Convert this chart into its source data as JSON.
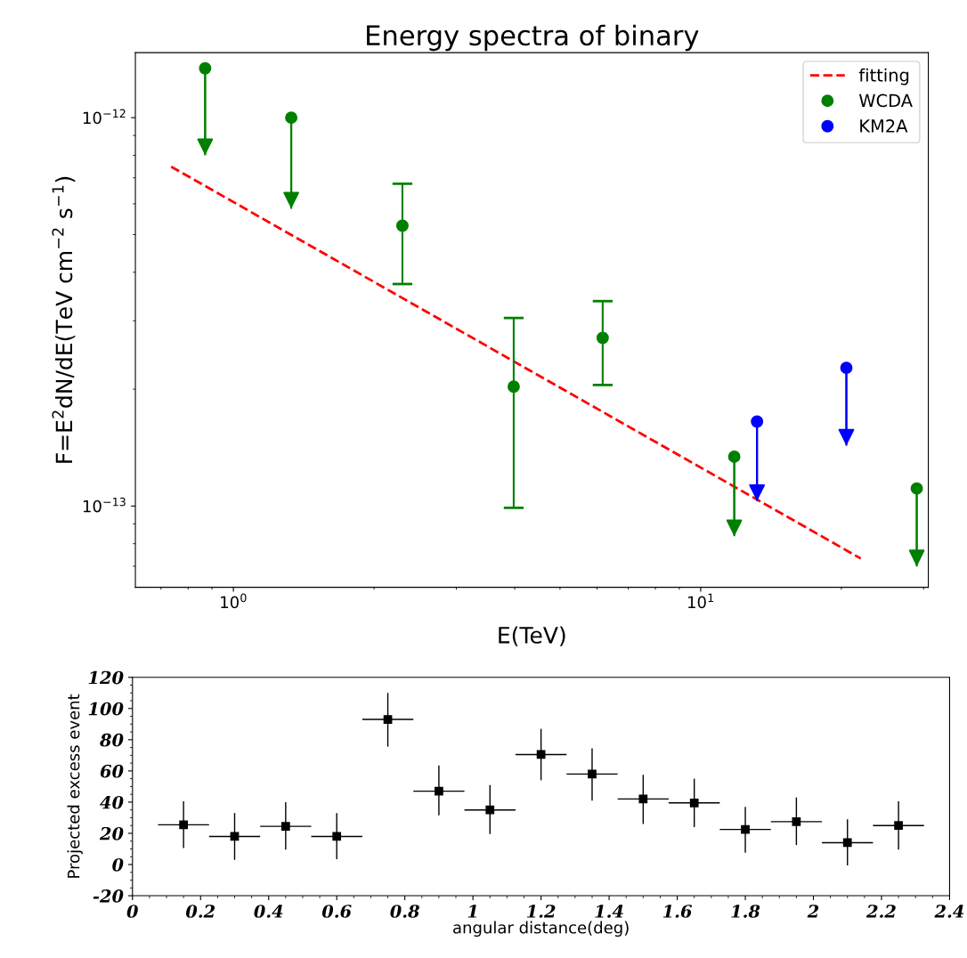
{
  "chart_data": [
    {
      "type": "scatter",
      "title": "Energy spectra of binary",
      "xlabel": "E(TeV)",
      "ylabel": "F=E$^{2}$dN/dE(TeV cm$^{−2}$ s$^{−1}$)",
      "log": "xy",
      "xlim": [
        0.617,
        30.7
      ],
      "ylim": [
        6.18e-14,
        1.47e-12
      ],
      "xticks": [
        {
          "value": 1,
          "label": "10$^{0}$"
        },
        {
          "value": 10,
          "label": "10$^{1}$"
        }
      ],
      "yticks": [
        {
          "value": 1e-13,
          "label": "10$^{−13}$"
        },
        {
          "value": 1e-12,
          "label": "10$^{−12}$"
        }
      ],
      "legend": "top right",
      "grid": false,
      "marker": "circle",
      "series": [
        {
          "name": "fitting",
          "type": "line",
          "marker": "none",
          "line_style": "dashed",
          "color": "#ff0000",
          "x": [
            0.736,
            22.0
          ],
          "values": [
            7.48e-13,
            7.33e-14
          ]
        },
        {
          "name": "WCDA",
          "color": "#008000",
          "x": [
            0.87,
            1.33,
            2.3,
            3.98,
            6.17,
            11.8,
            29.0
          ],
          "values": [
            1.34e-12,
            1e-12,
            5.27e-13,
            2.03e-13,
            2.71e-13,
            1.34e-13,
            1.11e-13
          ],
          "errors": [
            [
              8e-13,
              1.34e-12
            ],
            [
              5.83e-13,
              1e-12
            ],
            [
              3.73e-13,
              6.76e-13
            ],
            [
              9.9e-14,
              3.05e-13
            ],
            [
              2.05e-13,
              3.37e-13
            ],
            [
              8.36e-14,
              1.34e-13
            ],
            [
              6.99e-14,
              1.11e-13
            ]
          ]
        },
        {
          "name": "KM2A",
          "color": "#0000ff",
          "x": [
            13.2,
            20.5
          ],
          "values": [
            1.65e-13,
            2.27e-13
          ],
          "errors": [
            [
              1.03e-13,
              1.65e-13
            ],
            [
              1.43e-13,
              2.27e-13
            ]
          ]
        }
      ]
    },
    {
      "type": "scatter",
      "xlabel": "angular distance(deg)",
      "ylabel": "Projected excess event",
      "xlim": [
        0,
        2.4
      ],
      "ylim": [
        -20,
        120
      ],
      "xticks": [
        0,
        0.2,
        0.4,
        0.6,
        0.8,
        1,
        1.2,
        1.4,
        1.6,
        1.8,
        2,
        2.2,
        2.4
      ],
      "yticks": [
        -20,
        0,
        20,
        40,
        60,
        80,
        100,
        120
      ],
      "grid": false,
      "legend": false,
      "marker": "square",
      "series": [
        {
          "color": "#000000",
          "x": [
            0.15,
            0.3,
            0.45,
            0.6,
            0.75,
            0.9,
            1.05,
            1.2,
            1.35,
            1.5,
            1.65,
            1.8,
            1.95,
            2.1,
            2.25
          ],
          "values": [
            25.5,
            18,
            24.5,
            18,
            93,
            47,
            35,
            70.5,
            58,
            42,
            39.5,
            22.5,
            27.5,
            14,
            25
          ],
          "errors": [
            [
              10.5,
              40.5
            ],
            [
              3,
              33
            ],
            [
              9.5,
              40
            ],
            [
              3.5,
              33
            ],
            [
              75.5,
              110
            ],
            [
              31.5,
              63.5
            ],
            [
              19.5,
              51
            ],
            [
              54,
              87
            ],
            [
              41,
              74.5
            ],
            [
              26,
              57.5
            ],
            [
              24,
              55
            ],
            [
              7.5,
              37
            ],
            [
              12.5,
              43
            ],
            [
              -0.5,
              29
            ],
            [
              9.5,
              40.5
            ]
          ],
          "xerrors": [
            0.075,
            0.075,
            0.075,
            0.075,
            0.075,
            0.075,
            0.075,
            0.075,
            0.075,
            0.075,
            0.075,
            0.075,
            0.075,
            0.075,
            0.075
          ]
        }
      ]
    }
  ]
}
